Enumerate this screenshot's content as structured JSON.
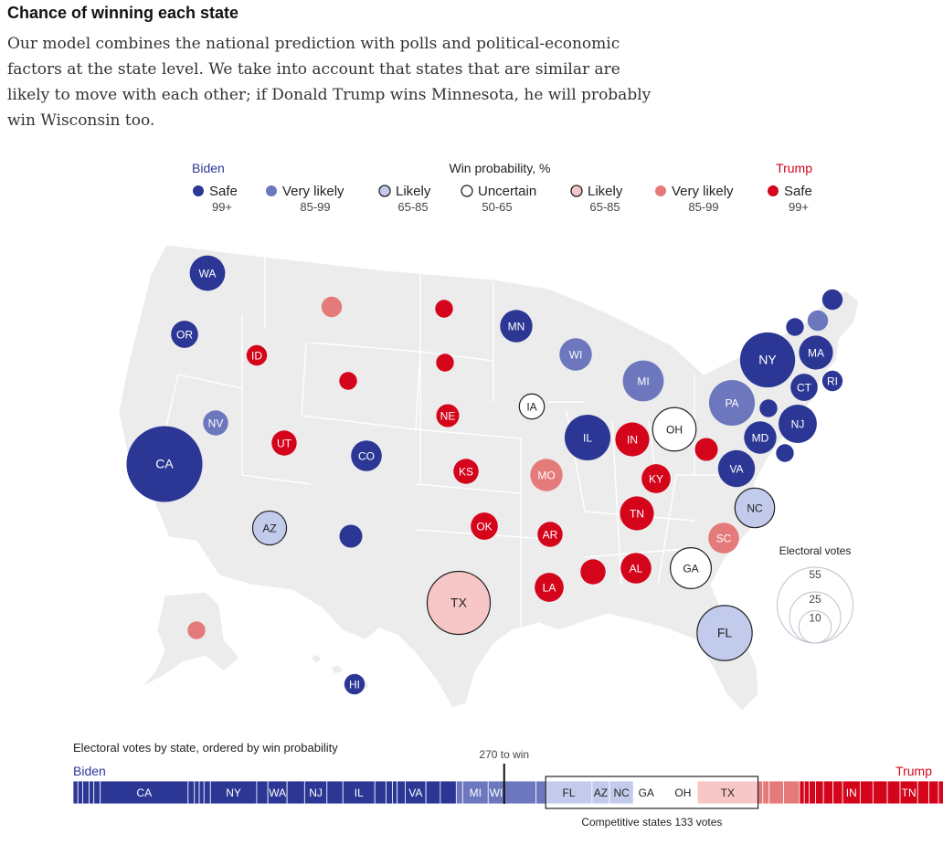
{
  "header": {
    "title": "Chance of winning each state",
    "subtitle": "Our model combines the national prediction with polls and political-economic factors at the state level. We take into account that states that are similar are likely to move with each other; if Donald Trump wins Minnesota, he will probably win Wisconsin too."
  },
  "colors": {
    "safe_biden": "#2c3795",
    "very_likely_biden": "#6c77bd",
    "likely_biden": "#c3cbed",
    "uncertain": "#ffffff",
    "likely_trump": "#f7c6c6",
    "very_likely_trump": "#e57a7a",
    "safe_trump": "#d4041b"
  },
  "legend": {
    "biden_label": "Biden",
    "trump_label": "Trump",
    "center_label": "Win probability, %",
    "items": [
      {
        "label": "Safe",
        "range": "99+",
        "cat": "safe_biden"
      },
      {
        "label": "Very likely",
        "range": "85-99",
        "cat": "very_likely_biden"
      },
      {
        "label": "Likely",
        "range": "65-85",
        "cat": "likely_biden"
      },
      {
        "label": "Uncertain",
        "range": "50-65",
        "cat": "uncertain"
      },
      {
        "label": "Likely",
        "range": "65-85",
        "cat": "likely_trump"
      },
      {
        "label": "Very likely",
        "range": "85-99",
        "cat": "very_likely_trump"
      },
      {
        "label": "Safe",
        "range": "99+",
        "cat": "safe_trump"
      }
    ]
  },
  "size_legend": {
    "title": "Electoral votes",
    "values": [
      55,
      25,
      10
    ]
  },
  "bar_section": {
    "title": "Electoral votes by state, ordered by win probability",
    "biden_label": "Biden",
    "trump_label": "Trump",
    "threshold_label": "270 to win",
    "competitive_label": "Competitive states 133 votes"
  },
  "chart_data": [
    {
      "type": "bubble-map",
      "title": "Chance of winning each state",
      "states": [
        {
          "label": "WA",
          "votes": 12,
          "cat": "safe_biden"
        },
        {
          "label": "OR",
          "votes": 7,
          "cat": "safe_biden"
        },
        {
          "label": "",
          "votes": 4,
          "cat": "very_likely_trump"
        },
        {
          "label": "ID",
          "votes": 4,
          "cat": "safe_trump"
        },
        {
          "label": "",
          "votes": 3,
          "cat": "safe_trump"
        },
        {
          "label": "",
          "votes": 3,
          "cat": "safe_trump"
        },
        {
          "label": "MN",
          "votes": 10,
          "cat": "safe_biden"
        },
        {
          "label": "",
          "votes": 3,
          "cat": "safe_trump"
        },
        {
          "label": "WI",
          "votes": 10,
          "cat": "very_likely_biden"
        },
        {
          "label": "MI",
          "votes": 16,
          "cat": "very_likely_biden"
        },
        {
          "label": "NV",
          "votes": 6,
          "cat": "very_likely_biden"
        },
        {
          "label": "UT",
          "votes": 6,
          "cat": "safe_trump"
        },
        {
          "label": "CO",
          "votes": 9,
          "cat": "safe_biden"
        },
        {
          "label": "CA",
          "votes": 55,
          "cat": "safe_biden"
        },
        {
          "label": "NE",
          "votes": 5,
          "cat": "safe_trump"
        },
        {
          "label": "IA",
          "votes": 6,
          "cat": "uncertain"
        },
        {
          "label": "IL",
          "votes": 20,
          "cat": "safe_biden"
        },
        {
          "label": "IN",
          "votes": 11,
          "cat": "safe_trump"
        },
        {
          "label": "OH",
          "votes": 18,
          "cat": "uncertain"
        },
        {
          "label": "",
          "votes": 5,
          "cat": "safe_trump"
        },
        {
          "label": "PA",
          "votes": 20,
          "cat": "very_likely_biden"
        },
        {
          "label": "NY",
          "votes": 29,
          "cat": "safe_biden"
        },
        {
          "label": "KS",
          "votes": 6,
          "cat": "safe_trump"
        },
        {
          "label": "MO",
          "votes": 10,
          "cat": "very_likely_trump"
        },
        {
          "label": "KY",
          "votes": 8,
          "cat": "safe_trump"
        },
        {
          "label": "VA",
          "votes": 13,
          "cat": "safe_biden"
        },
        {
          "label": "MD",
          "votes": 10,
          "cat": "safe_biden"
        },
        {
          "label": "",
          "votes": 3,
          "cat": "safe_biden"
        },
        {
          "label": "NJ",
          "votes": 14,
          "cat": "safe_biden"
        },
        {
          "label": "",
          "votes": 3,
          "cat": "safe_biden"
        },
        {
          "label": "CT",
          "votes": 7,
          "cat": "safe_biden"
        },
        {
          "label": "RI",
          "votes": 4,
          "cat": "safe_biden"
        },
        {
          "label": "MA",
          "votes": 11,
          "cat": "safe_biden"
        },
        {
          "label": "",
          "votes": 4,
          "cat": "very_likely_biden"
        },
        {
          "label": "",
          "votes": 3,
          "cat": "safe_biden"
        },
        {
          "label": "",
          "votes": 4,
          "cat": "safe_biden"
        },
        {
          "label": "AZ",
          "votes": 11,
          "cat": "likely_biden"
        },
        {
          "label": "",
          "votes": 5,
          "cat": "safe_biden"
        },
        {
          "label": "OK",
          "votes": 7,
          "cat": "safe_trump"
        },
        {
          "label": "AR",
          "votes": 6,
          "cat": "safe_trump"
        },
        {
          "label": "TN",
          "votes": 11,
          "cat": "safe_trump"
        },
        {
          "label": "NC",
          "votes": 15,
          "cat": "likely_biden"
        },
        {
          "label": "SC",
          "votes": 9,
          "cat": "very_likely_trump"
        },
        {
          "label": "",
          "votes": 6,
          "cat": "safe_trump"
        },
        {
          "label": "AL",
          "votes": 9,
          "cat": "safe_trump"
        },
        {
          "label": "GA",
          "votes": 16,
          "cat": "uncertain"
        },
        {
          "label": "LA",
          "votes": 8,
          "cat": "safe_trump"
        },
        {
          "label": "TX",
          "votes": 38,
          "cat": "likely_trump"
        },
        {
          "label": "FL",
          "votes": 29,
          "cat": "likely_biden"
        },
        {
          "label": "",
          "votes": 3,
          "cat": "very_likely_trump"
        },
        {
          "label": "HI",
          "votes": 4,
          "cat": "safe_biden"
        }
      ]
    },
    {
      "type": "bar",
      "title": "Electoral votes by state, ordered by win probability",
      "x_total": 538,
      "threshold": 270,
      "segments": [
        {
          "label": "",
          "votes": 3,
          "cat": "safe_biden"
        },
        {
          "label": "",
          "votes": 3,
          "cat": "safe_biden"
        },
        {
          "label": "",
          "votes": 4,
          "cat": "safe_biden"
        },
        {
          "label": "",
          "votes": 3,
          "cat": "safe_biden"
        },
        {
          "label": "",
          "votes": 4,
          "cat": "safe_biden"
        },
        {
          "label": "CA",
          "votes": 55,
          "cat": "safe_biden"
        },
        {
          "label": "",
          "votes": 4,
          "cat": "safe_biden"
        },
        {
          "label": "",
          "votes": 3,
          "cat": "safe_biden"
        },
        {
          "label": "",
          "votes": 3,
          "cat": "safe_biden"
        },
        {
          "label": "",
          "votes": 4,
          "cat": "safe_biden"
        },
        {
          "label": "NY",
          "votes": 29,
          "cat": "safe_biden"
        },
        {
          "label": "",
          "votes": 7,
          "cat": "safe_biden"
        },
        {
          "label": "WA",
          "votes": 12,
          "cat": "safe_biden"
        },
        {
          "label": "",
          "votes": 11,
          "cat": "safe_biden"
        },
        {
          "label": "NJ",
          "votes": 14,
          "cat": "safe_biden"
        },
        {
          "label": "",
          "votes": 10,
          "cat": "safe_biden"
        },
        {
          "label": "IL",
          "votes": 20,
          "cat": "safe_biden"
        },
        {
          "label": "",
          "votes": 7,
          "cat": "safe_biden"
        },
        {
          "label": "",
          "votes": 4,
          "cat": "safe_biden"
        },
        {
          "label": "",
          "votes": 3,
          "cat": "safe_biden"
        },
        {
          "label": "",
          "votes": 5,
          "cat": "safe_biden"
        },
        {
          "label": "VA",
          "votes": 13,
          "cat": "safe_biden"
        },
        {
          "label": "",
          "votes": 9,
          "cat": "safe_biden"
        },
        {
          "label": "",
          "votes": 10,
          "cat": "safe_biden"
        },
        {
          "label": "",
          "votes": 4,
          "cat": "very_likely_biden"
        },
        {
          "label": "MI",
          "votes": 16,
          "cat": "very_likely_biden"
        },
        {
          "label": "WI",
          "votes": 10,
          "cat": "very_likely_biden"
        },
        {
          "label": "",
          "votes": 20,
          "cat": "very_likely_biden"
        },
        {
          "label": "",
          "votes": 6,
          "cat": "very_likely_biden"
        },
        {
          "label": "FL",
          "votes": 29,
          "cat": "likely_biden"
        },
        {
          "label": "AZ",
          "votes": 11,
          "cat": "likely_biden"
        },
        {
          "label": "NC",
          "votes": 15,
          "cat": "likely_biden"
        },
        {
          "label": "GA",
          "votes": 16,
          "cat": "uncertain"
        },
        {
          "label": "",
          "votes": 6,
          "cat": "uncertain"
        },
        {
          "label": "OH",
          "votes": 18,
          "cat": "uncertain"
        },
        {
          "label": "TX",
          "votes": 38,
          "cat": "likely_trump"
        },
        {
          "label": "",
          "votes": 3,
          "cat": "very_likely_trump"
        },
        {
          "label": "",
          "votes": 4,
          "cat": "very_likely_trump"
        },
        {
          "label": "",
          "votes": 9,
          "cat": "very_likely_trump"
        },
        {
          "label": "",
          "votes": 10,
          "cat": "very_likely_trump"
        },
        {
          "label": "",
          "votes": 3,
          "cat": "safe_trump"
        },
        {
          "label": "",
          "votes": 3,
          "cat": "safe_trump"
        },
        {
          "label": "",
          "votes": 4,
          "cat": "safe_trump"
        },
        {
          "label": "",
          "votes": 5,
          "cat": "safe_trump"
        },
        {
          "label": "",
          "votes": 6,
          "cat": "safe_trump"
        },
        {
          "label": "",
          "votes": 6,
          "cat": "safe_trump"
        },
        {
          "label": "IN",
          "votes": 11,
          "cat": "safe_trump"
        },
        {
          "label": "",
          "votes": 8,
          "cat": "safe_trump"
        },
        {
          "label": "",
          "votes": 9,
          "cat": "safe_trump"
        },
        {
          "label": "",
          "votes": 8,
          "cat": "safe_trump"
        },
        {
          "label": "TN",
          "votes": 11,
          "cat": "safe_trump"
        },
        {
          "label": "",
          "votes": 7,
          "cat": "safe_trump"
        },
        {
          "label": "",
          "votes": 6,
          "cat": "safe_trump"
        },
        {
          "label": "",
          "votes": 5,
          "cat": "safe_trump"
        },
        {
          "label": "",
          "votes": 3,
          "cat": "safe_trump"
        },
        {
          "label": "",
          "votes": 3,
          "cat": "safe_trump"
        },
        {
          "label": "",
          "votes": 4,
          "cat": "safe_trump"
        },
        {
          "label": "",
          "votes": 3,
          "cat": "safe_trump"
        },
        {
          "label": "",
          "votes": 5,
          "cat": "safe_trump"
        }
      ]
    }
  ]
}
